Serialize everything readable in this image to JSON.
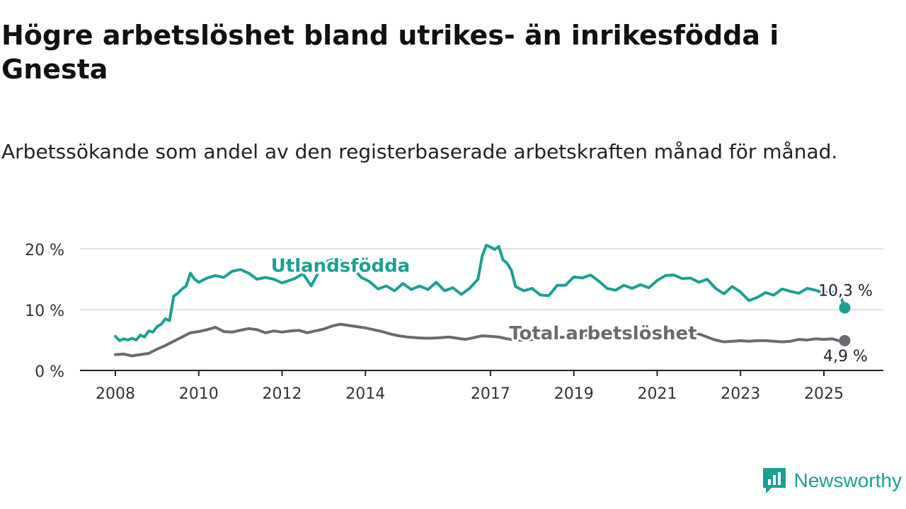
{
  "header": {
    "title": "Högre arbetslöshet bland utrikes- än inrikesfödda i Gnesta",
    "subtitle": "Arbetssökande som andel av den registerbaserade arbetskraften månad för månad."
  },
  "brand": {
    "name": "Newsworthy",
    "icon": "newsworthy-logo-icon",
    "color": "#1aa094"
  },
  "chart_data": {
    "type": "line",
    "title": "Högre arbetslöshet bland utrikes- än inrikesfödda i Gnesta",
    "subtitle": "Arbetssökande som andel av den registerbaserade arbetskraften månad för månad.",
    "ylim": [
      0,
      20
    ],
    "yticks": [
      0,
      10,
      20
    ],
    "ytick_labels": [
      "0 %",
      "10 %",
      "20 %"
    ],
    "xlim": [
      2008,
      2025.7
    ],
    "xticks": [
      2008,
      2010,
      2012,
      2014,
      2017,
      2019,
      2021,
      2023,
      2025
    ],
    "xtick_labels": [
      "2008",
      "2010",
      "2012",
      "2014",
      "2017",
      "2019",
      "2021",
      "2023",
      "2025"
    ],
    "grid": true,
    "series": [
      {
        "name": "Utlandsfödda",
        "color": "#1aa094",
        "end_label": "10,3 %",
        "points": [
          [
            2008.0,
            5.6
          ],
          [
            2008.1,
            4.9
          ],
          [
            2008.2,
            5.2
          ],
          [
            2008.3,
            5.0
          ],
          [
            2008.4,
            5.3
          ],
          [
            2008.5,
            5.0
          ],
          [
            2008.6,
            5.8
          ],
          [
            2008.7,
            5.5
          ],
          [
            2008.8,
            6.5
          ],
          [
            2008.9,
            6.3
          ],
          [
            2009.0,
            7.2
          ],
          [
            2009.1,
            7.6
          ],
          [
            2009.2,
            8.5
          ],
          [
            2009.3,
            8.2
          ],
          [
            2009.4,
            12.2
          ],
          [
            2009.5,
            12.7
          ],
          [
            2009.6,
            13.4
          ],
          [
            2009.7,
            13.9
          ],
          [
            2009.8,
            16.0
          ],
          [
            2009.9,
            15.0
          ],
          [
            2010.0,
            14.5
          ],
          [
            2010.2,
            15.2
          ],
          [
            2010.4,
            15.6
          ],
          [
            2010.6,
            15.3
          ],
          [
            2010.8,
            16.3
          ],
          [
            2011.0,
            16.6
          ],
          [
            2011.2,
            16.0
          ],
          [
            2011.4,
            15.0
          ],
          [
            2011.6,
            15.3
          ],
          [
            2011.8,
            15.0
          ],
          [
            2012.0,
            14.4
          ],
          [
            2012.3,
            15.1
          ],
          [
            2012.5,
            15.9
          ],
          [
            2012.7,
            13.9
          ],
          [
            2012.9,
            16.5
          ],
          [
            2013.1,
            18.0
          ],
          [
            2013.3,
            18.4
          ],
          [
            2013.5,
            17.8
          ],
          [
            2013.7,
            16.8
          ],
          [
            2013.9,
            15.3
          ],
          [
            2014.1,
            14.6
          ],
          [
            2014.3,
            13.4
          ],
          [
            2014.5,
            13.9
          ],
          [
            2014.7,
            13.1
          ],
          [
            2014.9,
            14.3
          ],
          [
            2015.1,
            13.3
          ],
          [
            2015.3,
            13.9
          ],
          [
            2015.5,
            13.3
          ],
          [
            2015.7,
            14.5
          ],
          [
            2015.9,
            13.1
          ],
          [
            2016.1,
            13.6
          ],
          [
            2016.3,
            12.5
          ],
          [
            2016.5,
            13.5
          ],
          [
            2016.7,
            15.0
          ],
          [
            2016.8,
            18.8
          ],
          [
            2016.9,
            20.6
          ],
          [
            2017.0,
            20.3
          ],
          [
            2017.1,
            19.9
          ],
          [
            2017.2,
            20.4
          ],
          [
            2017.3,
            18.2
          ],
          [
            2017.4,
            17.6
          ],
          [
            2017.5,
            16.5
          ],
          [
            2017.6,
            13.8
          ],
          [
            2017.8,
            13.1
          ],
          [
            2018.0,
            13.5
          ],
          [
            2018.2,
            12.4
          ],
          [
            2018.4,
            12.3
          ],
          [
            2018.6,
            14.0
          ],
          [
            2018.8,
            14.0
          ],
          [
            2019.0,
            15.4
          ],
          [
            2019.2,
            15.2
          ],
          [
            2019.4,
            15.7
          ],
          [
            2019.6,
            14.7
          ],
          [
            2019.8,
            13.5
          ],
          [
            2020.0,
            13.2
          ],
          [
            2020.2,
            14.0
          ],
          [
            2020.4,
            13.5
          ],
          [
            2020.6,
            14.1
          ],
          [
            2020.8,
            13.6
          ],
          [
            2021.0,
            14.8
          ],
          [
            2021.2,
            15.6
          ],
          [
            2021.4,
            15.7
          ],
          [
            2021.6,
            15.1
          ],
          [
            2021.8,
            15.2
          ],
          [
            2022.0,
            14.5
          ],
          [
            2022.2,
            15.0
          ],
          [
            2022.4,
            13.5
          ],
          [
            2022.6,
            12.6
          ],
          [
            2022.8,
            13.8
          ],
          [
            2023.0,
            12.9
          ],
          [
            2023.2,
            11.5
          ],
          [
            2023.4,
            12.0
          ],
          [
            2023.6,
            12.8
          ],
          [
            2023.8,
            12.4
          ],
          [
            2024.0,
            13.4
          ],
          [
            2024.2,
            13.0
          ],
          [
            2024.4,
            12.7
          ],
          [
            2024.6,
            13.5
          ],
          [
            2024.8,
            13.2
          ],
          [
            2025.0,
            12.7
          ],
          [
            2025.2,
            13.0
          ],
          [
            2025.4,
            12.2
          ],
          [
            2025.5,
            10.3
          ]
        ]
      },
      {
        "name": "Total arbetslöshet",
        "color": "#6b6a72",
        "end_label": "4,9 %",
        "points": [
          [
            2008.0,
            2.6
          ],
          [
            2008.2,
            2.7
          ],
          [
            2008.4,
            2.4
          ],
          [
            2008.6,
            2.6
          ],
          [
            2008.8,
            2.8
          ],
          [
            2009.0,
            3.5
          ],
          [
            2009.2,
            4.1
          ],
          [
            2009.4,
            4.8
          ],
          [
            2009.6,
            5.5
          ],
          [
            2009.8,
            6.2
          ],
          [
            2010.0,
            6.4
          ],
          [
            2010.2,
            6.7
          ],
          [
            2010.4,
            7.1
          ],
          [
            2010.6,
            6.4
          ],
          [
            2010.8,
            6.3
          ],
          [
            2011.0,
            6.6
          ],
          [
            2011.2,
            6.9
          ],
          [
            2011.4,
            6.7
          ],
          [
            2011.6,
            6.2
          ],
          [
            2011.8,
            6.5
          ],
          [
            2012.0,
            6.3
          ],
          [
            2012.2,
            6.5
          ],
          [
            2012.4,
            6.6
          ],
          [
            2012.6,
            6.2
          ],
          [
            2012.8,
            6.5
          ],
          [
            2013.0,
            6.8
          ],
          [
            2013.2,
            7.3
          ],
          [
            2013.4,
            7.6
          ],
          [
            2013.6,
            7.4
          ],
          [
            2013.8,
            7.2
          ],
          [
            2014.0,
            7.0
          ],
          [
            2014.2,
            6.7
          ],
          [
            2014.4,
            6.4
          ],
          [
            2014.6,
            6.0
          ],
          [
            2014.8,
            5.7
          ],
          [
            2015.0,
            5.5
          ],
          [
            2015.2,
            5.4
          ],
          [
            2015.4,
            5.3
          ],
          [
            2015.6,
            5.3
          ],
          [
            2015.8,
            5.4
          ],
          [
            2016.0,
            5.5
          ],
          [
            2016.2,
            5.3
          ],
          [
            2016.4,
            5.1
          ],
          [
            2016.6,
            5.4
          ],
          [
            2016.8,
            5.7
          ],
          [
            2017.0,
            5.6
          ],
          [
            2017.2,
            5.5
          ],
          [
            2017.4,
            5.2
          ],
          [
            2017.6,
            5.0
          ],
          [
            2017.8,
            5.0
          ],
          [
            2018.0,
            5.1
          ],
          [
            2018.2,
            5.2
          ],
          [
            2018.4,
            5.3
          ],
          [
            2018.6,
            5.4
          ],
          [
            2018.8,
            5.5
          ],
          [
            2019.0,
            5.6
          ],
          [
            2019.2,
            5.7
          ],
          [
            2019.4,
            5.8
          ],
          [
            2019.6,
            5.9
          ],
          [
            2019.8,
            6.0
          ],
          [
            2020.0,
            6.2
          ],
          [
            2020.2,
            6.4
          ],
          [
            2020.4,
            6.5
          ],
          [
            2020.6,
            6.6
          ],
          [
            2020.8,
            6.6
          ],
          [
            2021.0,
            6.5
          ],
          [
            2021.2,
            6.4
          ],
          [
            2021.4,
            6.6
          ],
          [
            2021.6,
            6.5
          ],
          [
            2021.8,
            6.3
          ],
          [
            2022.0,
            6.0
          ],
          [
            2022.2,
            5.5
          ],
          [
            2022.4,
            5.0
          ],
          [
            2022.6,
            4.7
          ],
          [
            2022.8,
            4.8
          ],
          [
            2023.0,
            4.9
          ],
          [
            2023.2,
            4.8
          ],
          [
            2023.4,
            4.9
          ],
          [
            2023.6,
            4.9
          ],
          [
            2023.8,
            4.8
          ],
          [
            2024.0,
            4.7
          ],
          [
            2024.2,
            4.8
          ],
          [
            2024.4,
            5.1
          ],
          [
            2024.6,
            5.0
          ],
          [
            2024.8,
            5.2
          ],
          [
            2025.0,
            5.1
          ],
          [
            2025.2,
            5.2
          ],
          [
            2025.4,
            4.8
          ],
          [
            2025.5,
            4.9
          ]
        ]
      }
    ],
    "series_labels": [
      {
        "text": "Utlandsfödda",
        "x": 2013.4,
        "y": 16.2
      },
      {
        "text": "Total arbetslöshet",
        "x": 2019.7,
        "y": 5.1
      }
    ]
  }
}
